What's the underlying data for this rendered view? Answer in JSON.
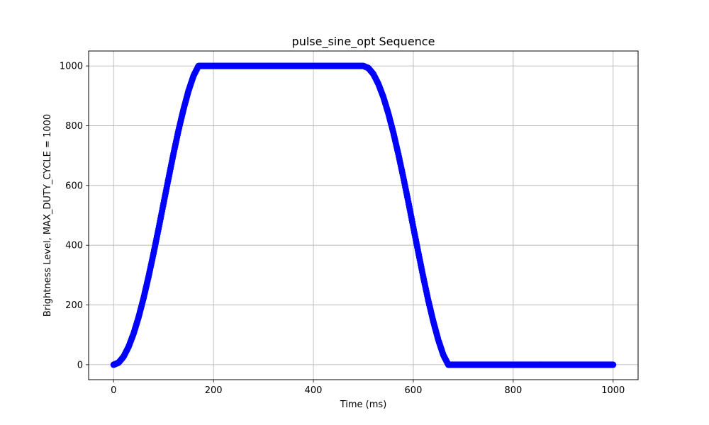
{
  "chart_data": {
    "type": "scatter",
    "title": "pulse_sine_opt Sequence",
    "xlabel": "Time (ms)",
    "ylabel": "Brightness Level, MAX_DUTY_CYCLE = 1000",
    "xlim": [
      -50,
      1050
    ],
    "ylim": [
      -50,
      1050
    ],
    "xticks": [
      0,
      200,
      400,
      600,
      800,
      1000
    ],
    "yticks": [
      0,
      200,
      400,
      600,
      800,
      1000
    ],
    "grid": true,
    "marker_color": "#0000ff",
    "series": [
      {
        "x": [
          0,
          10,
          20,
          30,
          40,
          50,
          60,
          70,
          80,
          90,
          100,
          110,
          120,
          130,
          140,
          150,
          160,
          170,
          180,
          190,
          200,
          210,
          220,
          230,
          240,
          250,
          260,
          270,
          280,
          290,
          300,
          320,
          340,
          360,
          380,
          400,
          420,
          440,
          460,
          480,
          500,
          510,
          520,
          530,
          540,
          550,
          560,
          570,
          580,
          590,
          600,
          610,
          620,
          630,
          640,
          650,
          660,
          670,
          680,
          690,
          700,
          710,
          720,
          730,
          740,
          750,
          760,
          770,
          780,
          790,
          800,
          820,
          840,
          860,
          880,
          900,
          920,
          940,
          960,
          980,
          1000
        ],
        "y": [
          0,
          7,
          27,
          60,
          104,
          159,
          223,
          295,
          373,
          455,
          540,
          624,
          707,
          785,
          855,
          917,
          967,
          1000,
          1000,
          1000,
          1000,
          1000,
          1000,
          1000,
          1000,
          1000,
          1000,
          1000,
          1000,
          1000,
          1000,
          1000,
          1000,
          1000,
          1000,
          1000,
          1000,
          1000,
          1000,
          1000,
          1000,
          993,
          973,
          940,
          896,
          841,
          777,
          705,
          627,
          545,
          460,
          376,
          293,
          215,
          145,
          83,
          33,
          0,
          0,
          0,
          0,
          0,
          0,
          0,
          0,
          0,
          0,
          0,
          0,
          0,
          0,
          0,
          0,
          0,
          0,
          0,
          0,
          0,
          0,
          0,
          0
        ]
      }
    ]
  }
}
